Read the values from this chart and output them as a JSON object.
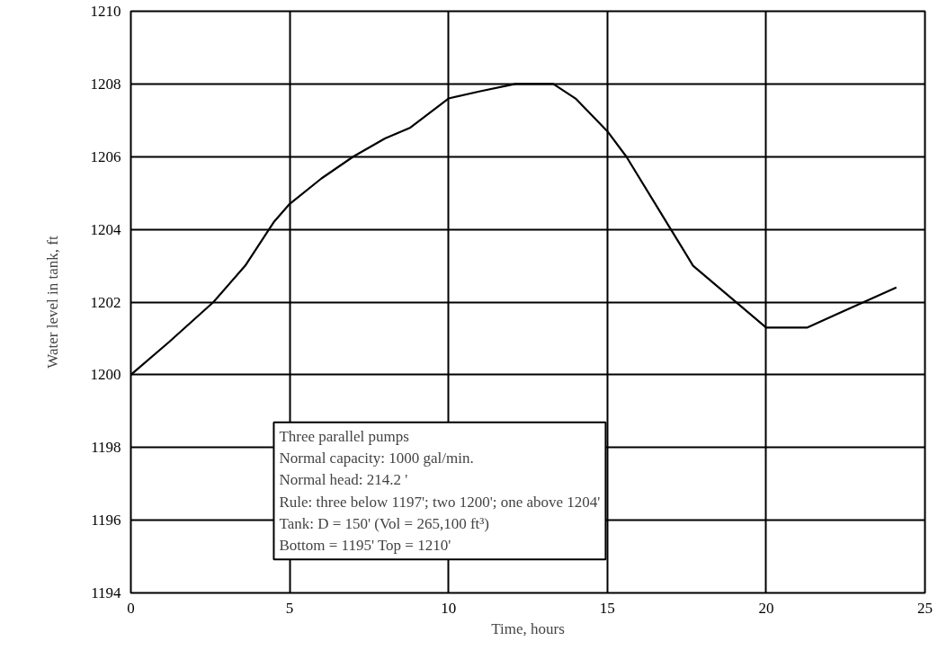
{
  "chart_data": {
    "type": "line",
    "xlabel": "Time, hours",
    "ylabel": "Water level in tank, ft",
    "xlim": [
      0,
      25
    ],
    "ylim": [
      1194,
      1210
    ],
    "xticks": [
      0,
      5,
      10,
      15,
      20,
      25
    ],
    "yticks": [
      1194,
      1196,
      1198,
      1200,
      1202,
      1204,
      1206,
      1208,
      1210
    ],
    "grid": true,
    "series": [
      {
        "color": "#000000",
        "x": [
          0,
          1.2,
          2.6,
          3.6,
          4.5,
          5,
          6,
          7,
          8,
          8.8,
          10,
          11,
          12.1,
          12.4,
          13.3,
          14,
          15,
          15.6,
          17,
          17.7,
          20,
          21.3,
          22.3,
          24.1
        ],
        "values": [
          1200,
          1200.9,
          1202,
          1203,
          1204.2,
          1204.7,
          1205.4,
          1206,
          1206.5,
          1206.8,
          1207.6,
          1207.8,
          1208,
          1208,
          1208,
          1207.6,
          1206.7,
          1206,
          1204,
          1203,
          1201.3,
          1201.3,
          1201.7,
          1202.4
        ]
      }
    ],
    "annotations": [
      "Three parallel pumps",
      "Normal capacity: 1000 gal/min.",
      "Normal head: 214.2 '",
      "Rule: three below 1197'; two 1200'; one above 1204'",
      "Tank: D = 150' (Vol = 265,100 ft³)",
      "Bottom = 1195'    Top = 1210'"
    ]
  }
}
